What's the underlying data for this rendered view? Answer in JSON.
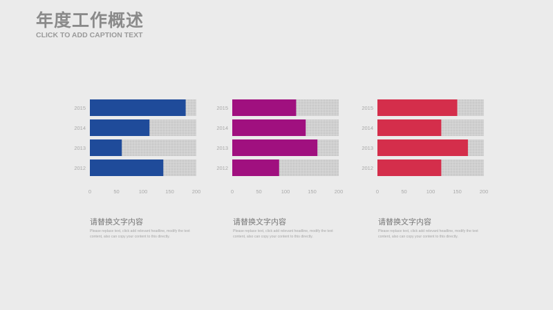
{
  "header": {
    "title": "年度工作概述",
    "subtitle": "CLICK TO ADD CAPTION TEXT"
  },
  "colors": {
    "background": "#ebebeb",
    "track": "#d2d2d2",
    "series": [
      "#1f4b9a",
      "#a0107f",
      "#d42e4b"
    ]
  },
  "chart_data": [
    {
      "type": "bar",
      "orientation": "horizontal",
      "categories": [
        "2015",
        "2014",
        "2013",
        "2012"
      ],
      "values": [
        180,
        112,
        60,
        138
      ],
      "max": 200,
      "xlim": [
        0,
        200
      ],
      "xticks": [
        "0",
        "50",
        "100",
        "150",
        "200"
      ],
      "color": "#1f4b9a"
    },
    {
      "type": "bar",
      "orientation": "horizontal",
      "categories": [
        "2015",
        "2014",
        "2013",
        "2012"
      ],
      "values": [
        120,
        138,
        160,
        88
      ],
      "max": 200,
      "xlim": [
        0,
        200
      ],
      "xticks": [
        "0",
        "50",
        "100",
        "150",
        "200"
      ],
      "color": "#a0107f"
    },
    {
      "type": "bar",
      "orientation": "horizontal",
      "categories": [
        "2015",
        "2014",
        "2013",
        "2012"
      ],
      "values": [
        150,
        120,
        170,
        120
      ],
      "max": 200,
      "xlim": [
        0,
        200
      ],
      "xticks": [
        "0",
        "50",
        "100",
        "150",
        "200"
      ],
      "color": "#d42e4b"
    }
  ],
  "captions": [
    {
      "title": "请替换文字内容",
      "body": "Please replace text, click add relevant headline, modify the text content, also can copy your content to this directly."
    },
    {
      "title": "请替换文字内容",
      "body": "Please replace text, click add relevant headline, modify the text content, also can copy your content to this directly."
    },
    {
      "title": "请替换文字内容",
      "body": "Please replace text, click add relevant headline, modify the text content, also can copy your content to this directly."
    }
  ]
}
